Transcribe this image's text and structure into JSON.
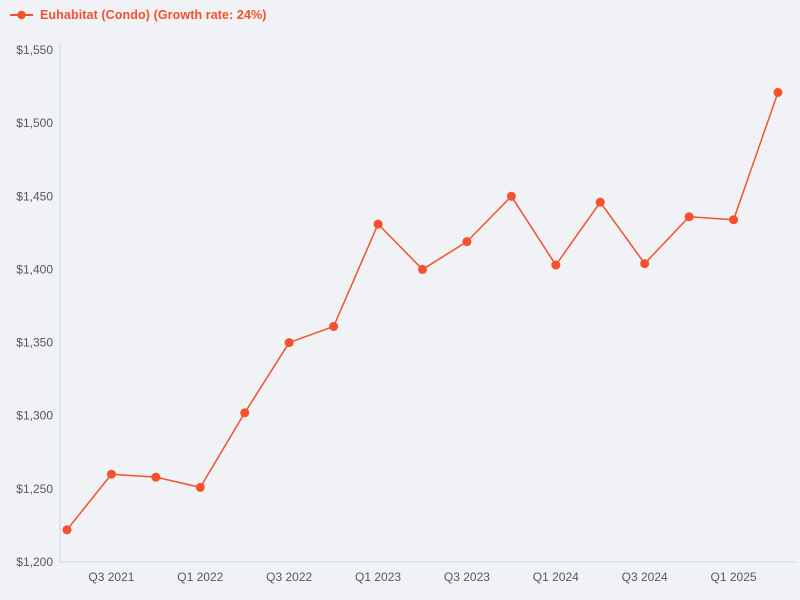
{
  "page": {
    "background_color": "#f0f2f5"
  },
  "colors": {
    "series": "#f4512c",
    "axis_line": "#ccd6eb",
    "tick_text": "#55585f"
  },
  "legend": {
    "label": "Euhabitat (Condo) (Growth rate: 24%)",
    "marker": "line-dot-icon"
  },
  "chart_data": {
    "type": "line",
    "title": "",
    "xlabel": "",
    "ylabel": "",
    "categories": [
      "Q2 2021",
      "Q3 2021",
      "Q4 2021",
      "Q1 2022",
      "Q2 2022",
      "Q3 2022",
      "Q4 2022",
      "Q1 2023",
      "Q2 2023",
      "Q3 2023",
      "Q4 2023",
      "Q1 2024",
      "Q2 2024",
      "Q3 2024",
      "Q4 2024",
      "Q1 2025",
      "Q2 2025"
    ],
    "series": [
      {
        "name": "Euhabitat (Condo)",
        "growth_rate": "24%",
        "values": [
          1222,
          1260,
          1258,
          1251,
          1302,
          1350,
          1361,
          1431,
          1400,
          1419,
          1450,
          1403,
          1446,
          1404,
          1436,
          1434,
          1521
        ]
      }
    ],
    "x_tick_labels": [
      "Q3 2021",
      "Q1 2022",
      "Q3 2022",
      "Q1 2023",
      "Q3 2023",
      "Q1 2024",
      "Q3 2024",
      "Q1 2025"
    ],
    "x_tick_indices": [
      1,
      3,
      5,
      7,
      9,
      11,
      13,
      15
    ],
    "y_ticks": [
      1200,
      1250,
      1300,
      1350,
      1400,
      1450,
      1500,
      1550
    ],
    "y_tick_labels": [
      "$1,200",
      "$1,250",
      "$1,300",
      "$1,350",
      "$1,400",
      "$1,450",
      "$1,500",
      "$1,550"
    ],
    "ylim": [
      1200,
      1550
    ],
    "grid": false,
    "legend_position": "top-left",
    "marker_radius": 4.5,
    "line_width": 1.5
  }
}
